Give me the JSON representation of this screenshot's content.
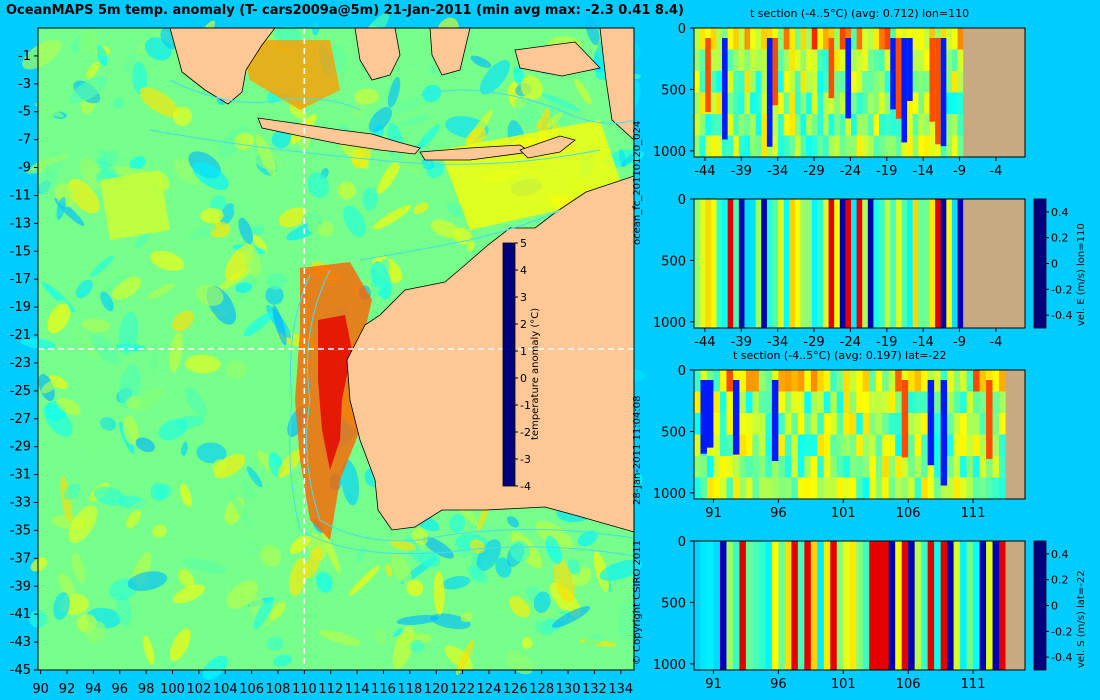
{
  "page": {
    "title": "OceanMAPS 5m temp. anomaly (T- cars2009a@5m) 21-Jan-2011 (min avg max: -2.3 0.41 8.4)",
    "forecast_id": "ocean_fc_20110120_024",
    "timestamp": "28-Jan-2011 11:04:08",
    "copyright": "© Copyright CSIRO 2011"
  },
  "colors": {
    "background": "#00ccff",
    "land": "#fdc896",
    "section_land": "#c8aa82",
    "grid_dash": "#ffffff",
    "colormap": [
      "#00007f",
      "#0000ff",
      "#0080ff",
      "#00ffff",
      "#80ff80",
      "#ffff00",
      "#ff8000",
      "#ff0000",
      "#7f0000"
    ]
  },
  "chart_data": [
    {
      "type": "heatmap",
      "name": "map",
      "title": "OceanMAPS 5m temp. anomaly (T- cars2009a@5m) 21-Jan-2011 (min avg max: -2.3 0.41 8.4)",
      "xticks": [
        "90",
        "92",
        "94",
        "96",
        "98",
        "100",
        "102",
        "104",
        "106",
        "108",
        "110",
        "112",
        "114",
        "116",
        "118",
        "120",
        "122",
        "124",
        "126",
        "128",
        "130",
        "132",
        "134"
      ],
      "yticks": [
        "-1",
        "-3",
        "-5",
        "-7",
        "-9",
        "-11",
        "-13",
        "-15",
        "-17",
        "-19",
        "-21",
        "-23",
        "-25",
        "-27",
        "-29",
        "-31",
        "-33",
        "-35",
        "-37",
        "-39",
        "-41",
        "-43",
        "-45"
      ],
      "xlim": [
        89.8,
        135
      ],
      "ylim": [
        -45,
        1
      ],
      "section_lines": {
        "lon": 110,
        "lat": -22
      },
      "colorbar": {
        "label": "temperature anomaly (°C)",
        "ticks": [
          "5",
          "4",
          "3",
          "2",
          "1",
          "0",
          "-1",
          "-2",
          "-3",
          "-4"
        ],
        "range": [
          -4,
          5
        ]
      },
      "stats": {
        "min": -2.3,
        "avg": 0.41,
        "max": 8.4
      }
    },
    {
      "type": "heatmap",
      "name": "t-section-lon110",
      "title": "t section (-4..5°C) (avg: 0.712) lon=110",
      "xticks": [
        "-44",
        "-39",
        "-34",
        "-29",
        "-24",
        "-19",
        "-14",
        "-9",
        "-4"
      ],
      "yticks": [
        "0",
        "500",
        "1000"
      ],
      "xlim": [
        -45.5,
        0
      ],
      "ylim": [
        1050,
        0
      ],
      "land_from": -8.5
    },
    {
      "type": "heatmap",
      "name": "velE-section-lon110",
      "title": "",
      "xticks": [
        "-44",
        "-39",
        "-34",
        "-29",
        "-24",
        "-19",
        "-14",
        "-9",
        "-4"
      ],
      "yticks": [
        "0",
        "500",
        "1000"
      ],
      "xlim": [
        -45.5,
        0
      ],
      "ylim": [
        1050,
        0
      ],
      "land_from": -8.5,
      "colorbar": {
        "label": "vel. E (m/s) lon=110",
        "ticks": [
          "0.4",
          "0.2",
          "0",
          "-0.2",
          "-0.4"
        ],
        "range": [
          -0.5,
          0.5
        ]
      }
    },
    {
      "type": "heatmap",
      "name": "t-section-lat-22",
      "title": "t section (-4..5°C) (avg: 0.197) lat=-22",
      "xticks": [
        "91",
        "96",
        "101",
        "106",
        "111"
      ],
      "yticks": [
        "0",
        "500",
        "1000"
      ],
      "xlim": [
        89.5,
        115
      ],
      "ylim": [
        1050,
        0
      ],
      "land_from": 113.5
    },
    {
      "type": "heatmap",
      "name": "velS-section-lat-22",
      "title": "",
      "xticks": [
        "91",
        "96",
        "101",
        "106",
        "111"
      ],
      "yticks": [
        "0",
        "500",
        "1000"
      ],
      "xlim": [
        89.5,
        115
      ],
      "ylim": [
        1050,
        0
      ],
      "land_from": 113.5,
      "colorbar": {
        "label": "vel. S (m/s) lat=-22",
        "ticks": [
          "0.4",
          "0.2",
          "0",
          "-0.2",
          "-0.4"
        ],
        "range": [
          -0.5,
          0.5
        ]
      }
    }
  ]
}
